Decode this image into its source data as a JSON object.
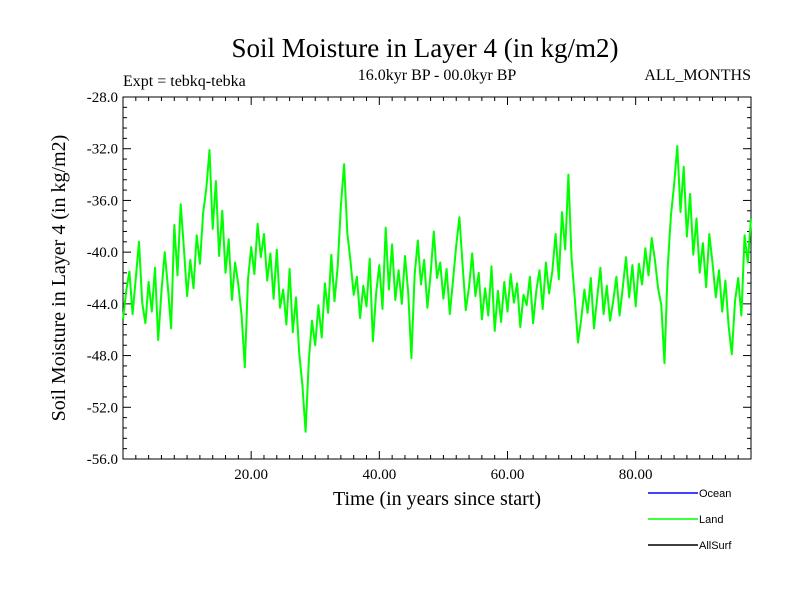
{
  "chart_data": {
    "type": "line",
    "title": "Soil Moisture in Layer 4 (in kg/m2)",
    "subtitle_left": "Expt = tebkq-tebka",
    "subtitle_center": "16.0kyr BP - 00.0kyr BP",
    "subtitle_right": "ALL_MONTHS",
    "xlabel": "Time (in years since start)",
    "ylabel": "Soil Moisture in Layer 4 (in kg/m2)",
    "xlim": [
      0,
      98
    ],
    "ylim": [
      -56,
      -28
    ],
    "x_ticks": [
      20,
      40,
      60,
      80
    ],
    "x_tick_labels": [
      "20.00",
      "40.00",
      "60.00",
      "80.00"
    ],
    "y_ticks": [
      -28,
      -32,
      -36,
      -40,
      -44,
      -48,
      -52,
      -56
    ],
    "y_tick_labels": [
      "-28.0",
      "-32.0",
      "-36.0",
      "-40.0",
      "-44.0",
      "-48.0",
      "-52.0",
      "-56.0"
    ],
    "legend": [
      {
        "name": "Ocean",
        "color": "#0000ff"
      },
      {
        "name": "Land",
        "color": "#00ff00"
      },
      {
        "name": "AllSurf",
        "color": "#000000"
      }
    ],
    "series": [
      {
        "name": "Land",
        "color": "#00ff00",
        "x": [
          0,
          0.5,
          1,
          1.5,
          2,
          2.5,
          3,
          3.5,
          4,
          4.5,
          5,
          5.5,
          6,
          6.5,
          7,
          7.5,
          8,
          8.5,
          9,
          9.5,
          10,
          10.5,
          11,
          11.5,
          12,
          12.5,
          13,
          13.5,
          14,
          14.5,
          15,
          15.5,
          16,
          16.5,
          17,
          17.5,
          18,
          18.5,
          19,
          19.5,
          20,
          20.5,
          21,
          21.5,
          22,
          22.5,
          23,
          23.5,
          24,
          24.5,
          25,
          25.5,
          26,
          26.5,
          27,
          27.5,
          28,
          28.5,
          29,
          29.5,
          30,
          30.5,
          31,
          31.5,
          32,
          32.5,
          33,
          33.5,
          34,
          34.5,
          35,
          35.5,
          36,
          36.5,
          37,
          37.5,
          38,
          38.5,
          39,
          39.5,
          40,
          40.5,
          41,
          41.5,
          42,
          42.5,
          43,
          43.5,
          44,
          44.5,
          45,
          45.5,
          46,
          46.5,
          47,
          47.5,
          48,
          48.5,
          49,
          49.5,
          50,
          50.5,
          51,
          51.5,
          52,
          52.5,
          53,
          53.5,
          54,
          54.5,
          55,
          55.5,
          56,
          56.5,
          57,
          57.5,
          58,
          58.5,
          59,
          59.5,
          60,
          60.5,
          61,
          61.5,
          62,
          62.5,
          63,
          63.5,
          64,
          64.5,
          65,
          65.5,
          66,
          66.5,
          67,
          67.5,
          68,
          68.5,
          69,
          69.5,
          70,
          70.5,
          71,
          71.5,
          72,
          72.5,
          73,
          73.5,
          74,
          74.5,
          75,
          75.5,
          76,
          76.5,
          77,
          77.5,
          78,
          78.5,
          79,
          79.5,
          80,
          80.5,
          81,
          81.5,
          82,
          82.5,
          83,
          83.5,
          84,
          84.5,
          85,
          85.5,
          86,
          86.5,
          87,
          87.5,
          88,
          88.5,
          89,
          89.5,
          90,
          90.5,
          91,
          91.5,
          92,
          92.5,
          93,
          93.5,
          94,
          94.5,
          95,
          95.5,
          96,
          96.5,
          97,
          97.5,
          98
        ],
        "values": [
          -45.2,
          -43.0,
          -41.5,
          -44.8,
          -42.0,
          -39.2,
          -43.9,
          -45.5,
          -42.3,
          -44.6,
          -41.2,
          -46.8,
          -43.1,
          -40.0,
          -42.7,
          -45.9,
          -37.9,
          -41.8,
          -36.3,
          -39.7,
          -43.4,
          -40.6,
          -42.8,
          -38.7,
          -40.9,
          -37.0,
          -35.1,
          -32.1,
          -38.2,
          -34.5,
          -40.3,
          -36.8,
          -41.6,
          -39.0,
          -43.7,
          -40.8,
          -42.5,
          -44.9,
          -48.9,
          -42.1,
          -39.6,
          -41.7,
          -37.8,
          -40.4,
          -38.6,
          -42.2,
          -40.1,
          -43.6,
          -39.8,
          -44.3,
          -42.9,
          -45.6,
          -41.3,
          -46.2,
          -43.5,
          -47.8,
          -50.3,
          -53.9,
          -48.4,
          -45.3,
          -47.2,
          -44.1,
          -46.6,
          -42.4,
          -44.7,
          -40.2,
          -43.8,
          -41.1,
          -36.4,
          -33.2,
          -38.5,
          -40.7,
          -43.3,
          -41.9,
          -45.1,
          -42.6,
          -44.2,
          -40.5,
          -46.9,
          -43.2,
          -41.0,
          -44.4,
          -38.1,
          -42.9,
          -39.4,
          -43.7,
          -41.4,
          -44.0,
          -40.3,
          -43.1,
          -48.2,
          -41.8,
          -39.1,
          -42.5,
          -40.6,
          -44.3,
          -41.7,
          -38.4,
          -42.0,
          -40.8,
          -43.6,
          -41.3,
          -44.8,
          -42.2,
          -39.5,
          -37.3,
          -41.0,
          -44.5,
          -42.7,
          -40.1,
          -43.4,
          -41.6,
          -45.2,
          -42.8,
          -44.9,
          -41.1,
          -46.1,
          -43.0,
          -45.4,
          -42.3,
          -44.6,
          -41.7,
          -43.9,
          -42.4,
          -45.8,
          -43.3,
          -44.1,
          -41.9,
          -45.5,
          -43.0,
          -41.4,
          -44.4,
          -40.8,
          -43.2,
          -41.5,
          -38.6,
          -42.1,
          -36.9,
          -39.8,
          -34.0,
          -40.5,
          -43.6,
          -47.0,
          -45.2,
          -42.9,
          -44.7,
          -42.0,
          -45.9,
          -43.5,
          -41.2,
          -44.8,
          -42.6,
          -45.3,
          -43.8,
          -41.9,
          -44.9,
          -42.7,
          -40.4,
          -43.5,
          -41.0,
          -44.2,
          -40.9,
          -42.5,
          -39.7,
          -41.8,
          -38.9,
          -40.6,
          -42.8,
          -44.1,
          -48.6,
          -41.2,
          -37.2,
          -34.8,
          -31.8,
          -36.9,
          -33.4,
          -38.8,
          -35.5,
          -40.2,
          -37.4,
          -41.6,
          -39.3,
          -42.7,
          -38.6,
          -40.9,
          -43.5,
          -41.4,
          -44.6,
          -42.2,
          -45.7,
          -47.9,
          -43.8,
          -42.0,
          -44.9,
          -38.7,
          -40.8,
          -37.4
        ]
      }
    ]
  }
}
